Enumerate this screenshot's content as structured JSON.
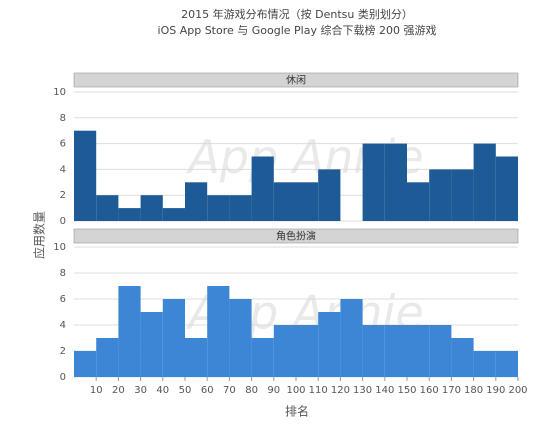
{
  "chart_data": {
    "type": "histogram",
    "title": "2015 年游戏分布情况（按 Dentsu 类别划分）",
    "subtitle": "iOS App Store 与 Google Play 综合下载榜 200 强游戏",
    "x_label": "排名",
    "y_label": "应用数量",
    "watermark": "App Annie",
    "bins": [
      0,
      10,
      20,
      30,
      40,
      50,
      60,
      70,
      80,
      90,
      100,
      110,
      120,
      130,
      140,
      150,
      160,
      170,
      180,
      190,
      200
    ],
    "xlim": [
      0,
      200
    ],
    "xticks": [
      10,
      20,
      30,
      40,
      50,
      60,
      70,
      80,
      90,
      100,
      110,
      120,
      130,
      140,
      150,
      160,
      170,
      180,
      190,
      200
    ],
    "ylim": [
      0,
      10
    ],
    "yticks": [
      0,
      2,
      4,
      6,
      8,
      10
    ],
    "grid": true,
    "series": [
      {
        "name": "休闲",
        "color": "#1d5a96",
        "values": [
          7,
          2,
          1,
          2,
          1,
          3,
          2,
          2,
          5,
          3,
          3,
          4,
          0,
          6,
          6,
          3,
          4,
          4,
          6,
          5
        ]
      },
      {
        "name": "角色扮演",
        "color": "#3d86d6",
        "values": [
          2,
          3,
          7,
          5,
          6,
          3,
          7,
          6,
          3,
          4,
          4,
          5,
          6,
          4,
          4,
          4,
          4,
          3,
          2,
          2
        ]
      }
    ]
  }
}
